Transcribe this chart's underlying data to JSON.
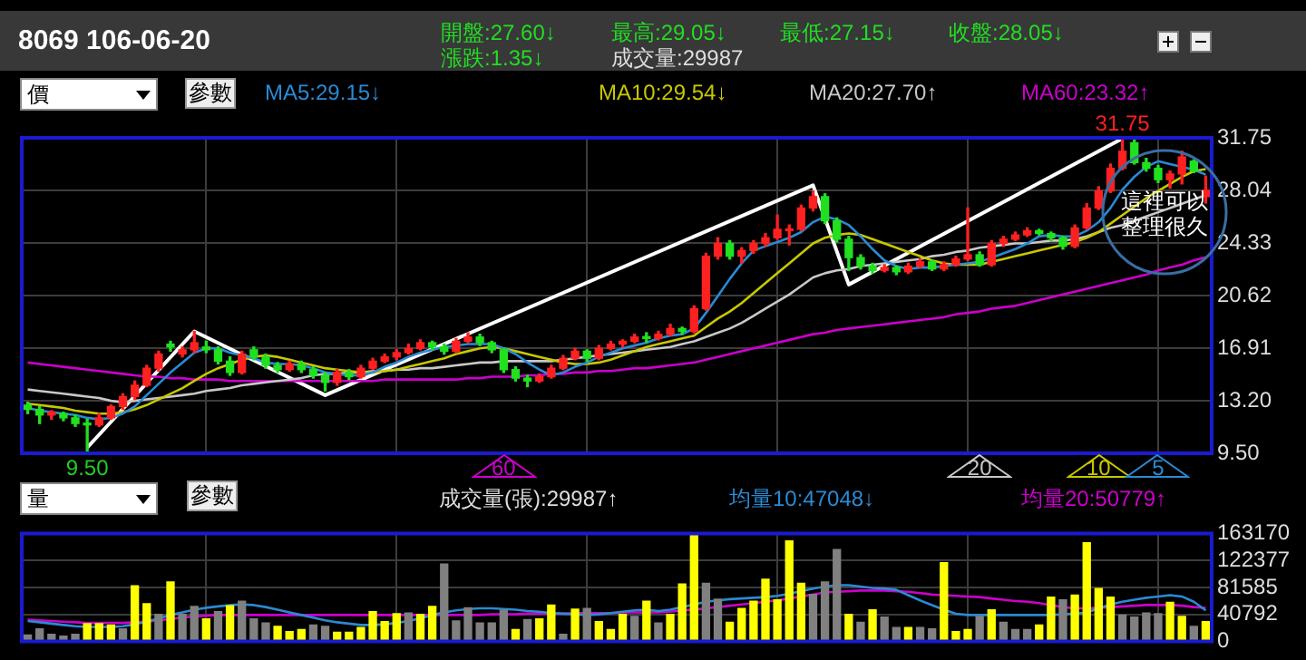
{
  "chart_data": [
    {
      "type": "candlestick",
      "title": "8069 106-06-20",
      "categories": [
        null,
        null,
        null,
        null,
        null,
        null,
        null,
        null,
        null,
        null,
        null,
        null,
        null,
        null,
        null,
        null,
        null,
        null,
        null,
        null,
        null,
        null,
        null,
        null,
        null,
        null,
        null,
        null,
        null,
        null,
        null,
        null,
        null,
        null,
        null,
        null,
        null,
        null,
        null,
        null,
        null,
        null,
        null,
        null,
        null,
        null,
        null,
        null,
        null,
        null,
        null,
        null,
        null,
        null,
        null,
        null,
        null,
        null,
        null,
        null,
        null,
        null,
        null,
        null,
        null,
        null,
        null,
        null,
        null,
        null,
        null,
        null,
        null,
        null,
        null,
        null,
        null,
        null,
        null,
        null,
        null,
        null,
        null,
        null,
        null,
        null,
        null,
        null,
        null,
        null,
        null,
        null,
        null,
        null,
        null,
        null,
        null,
        null,
        null,
        null
      ],
      "ohlc": [
        [
          12.9,
          13.1,
          12.3,
          12.6
        ],
        [
          12.6,
          12.8,
          11.6,
          12.2
        ],
        [
          12.2,
          12.5,
          11.9,
          12.4
        ],
        [
          12.3,
          12.4,
          11.8,
          12.0
        ],
        [
          12.0,
          12.2,
          11.4,
          11.6
        ],
        [
          11.6,
          11.9,
          9.5,
          11.5
        ],
        [
          11.5,
          12.3,
          11.4,
          12.0
        ],
        [
          12.0,
          12.9,
          11.9,
          12.8
        ],
        [
          12.8,
          13.7,
          12.6,
          13.5
        ],
        [
          13.5,
          14.6,
          13.3,
          14.3
        ],
        [
          14.3,
          15.7,
          14.2,
          15.5
        ],
        [
          15.5,
          16.7,
          15.3,
          16.5
        ],
        [
          17.2,
          17.4,
          16.7,
          17.0
        ],
        [
          16.5,
          17.0,
          16.3,
          16.8
        ],
        [
          16.8,
          18.1,
          16.6,
          17.3
        ],
        [
          17.0,
          17.4,
          16.6,
          16.8
        ],
        [
          16.8,
          17.0,
          15.8,
          16.0
        ],
        [
          16.0,
          16.3,
          15.0,
          15.2
        ],
        [
          15.2,
          16.7,
          15.1,
          16.5
        ],
        [
          16.8,
          17.0,
          16.1,
          16.3
        ],
        [
          16.3,
          16.5,
          15.5,
          15.7
        ],
        [
          15.7,
          15.9,
          15.2,
          15.4
        ],
        [
          15.4,
          16.0,
          15.3,
          15.8
        ],
        [
          15.8,
          16.0,
          15.2,
          15.4
        ],
        [
          15.4,
          15.6,
          14.8,
          15.0
        ],
        [
          15.0,
          15.2,
          13.9,
          14.5
        ],
        [
          14.5,
          15.4,
          14.3,
          15.2
        ],
        [
          15.2,
          15.4,
          14.7,
          14.9
        ],
        [
          14.9,
          15.7,
          14.8,
          15.5
        ],
        [
          15.5,
          16.2,
          15.4,
          16.0
        ],
        [
          16.0,
          16.5,
          15.9,
          16.3
        ],
        [
          16.3,
          16.8,
          16.1,
          16.6
        ],
        [
          16.6,
          17.2,
          16.5,
          16.9
        ],
        [
          16.9,
          17.5,
          16.8,
          17.3
        ],
        [
          17.3,
          17.4,
          16.8,
          17.0
        ],
        [
          17.0,
          17.2,
          16.5,
          16.7
        ],
        [
          16.7,
          17.6,
          16.6,
          17.4
        ],
        [
          17.4,
          18.0,
          17.3,
          17.7
        ],
        [
          17.7,
          17.9,
          17.1,
          17.3
        ],
        [
          17.3,
          17.4,
          16.6,
          16.8
        ],
        [
          16.8,
          16.9,
          15.2,
          15.4
        ],
        [
          15.4,
          15.6,
          14.6,
          14.8
        ],
        [
          14.8,
          15.0,
          14.2,
          14.6
        ],
        [
          14.6,
          15.1,
          14.5,
          14.9
        ],
        [
          14.9,
          15.7,
          14.8,
          15.5
        ],
        [
          15.5,
          16.4,
          15.4,
          16.2
        ],
        [
          16.2,
          16.9,
          16.1,
          16.7
        ],
        [
          16.7,
          16.8,
          16.0,
          16.2
        ],
        [
          16.2,
          17.1,
          16.1,
          16.9
        ],
        [
          16.9,
          17.4,
          16.8,
          17.2
        ],
        [
          17.2,
          17.5,
          17.0,
          17.4
        ],
        [
          17.4,
          17.9,
          17.3,
          17.7
        ],
        [
          17.7,
          18.0,
          17.3,
          17.6
        ],
        [
          17.6,
          18.1,
          17.5,
          17.9
        ],
        [
          17.9,
          18.6,
          17.8,
          18.3
        ],
        [
          18.3,
          18.4,
          17.9,
          18.1
        ],
        [
          18.1,
          19.9,
          18.0,
          19.7
        ],
        [
          19.7,
          23.6,
          19.6,
          23.4
        ],
        [
          23.4,
          24.7,
          23.2,
          24.3
        ],
        [
          24.3,
          24.5,
          23.2,
          23.4
        ],
        [
          23.4,
          24.0,
          22.9,
          23.8
        ],
        [
          23.8,
          24.5,
          23.6,
          24.3
        ],
        [
          24.3,
          25.0,
          24.1,
          24.7
        ],
        [
          24.7,
          26.3,
          24.6,
          25.3
        ],
        [
          25.2,
          25.6,
          24.2,
          25.3
        ],
        [
          25.3,
          27.0,
          25.2,
          26.8
        ],
        [
          26.8,
          28.0,
          26.6,
          27.6
        ],
        [
          27.6,
          27.8,
          25.7,
          25.9
        ],
        [
          25.9,
          26.1,
          24.4,
          24.6
        ],
        [
          24.6,
          24.8,
          22.4,
          23.3
        ],
        [
          23.3,
          23.5,
          22.5,
          22.7
        ],
        [
          22.7,
          22.9,
          22.2,
          22.4
        ],
        [
          22.4,
          22.8,
          22.3,
          22.6
        ],
        [
          22.6,
          22.7,
          22.1,
          22.3
        ],
        [
          22.3,
          22.9,
          22.2,
          22.7
        ],
        [
          22.7,
          23.2,
          22.6,
          23.0
        ],
        [
          23.0,
          23.1,
          22.4,
          22.5
        ],
        [
          22.5,
          23.0,
          22.4,
          22.8
        ],
        [
          22.8,
          23.4,
          22.7,
          23.2
        ],
        [
          23.2,
          26.8,
          23.1,
          23.5
        ],
        [
          23.5,
          23.7,
          22.7,
          22.8
        ],
        [
          22.8,
          24.5,
          22.7,
          24.3
        ],
        [
          24.3,
          24.8,
          24.1,
          24.6
        ],
        [
          24.6,
          25.1,
          24.5,
          24.9
        ],
        [
          24.9,
          25.4,
          24.8,
          25.2
        ],
        [
          25.2,
          25.3,
          24.9,
          25.0
        ],
        [
          25.0,
          25.1,
          24.5,
          24.7
        ],
        [
          24.7,
          24.8,
          23.9,
          24.1
        ],
        [
          24.1,
          25.6,
          24.0,
          25.4
        ],
        [
          25.4,
          27.1,
          25.3,
          26.8
        ],
        [
          26.8,
          28.3,
          26.7,
          28.0
        ],
        [
          28.0,
          29.9,
          27.9,
          29.6
        ],
        [
          29.6,
          31.75,
          29.5,
          30.8
        ],
        [
          31.4,
          31.6,
          29.9,
          30.0
        ],
        [
          30.0,
          30.3,
          29.4,
          29.6
        ],
        [
          29.6,
          29.8,
          28.6,
          28.8
        ],
        [
          28.8,
          29.4,
          28.2,
          29.2
        ],
        [
          29.2,
          30.8,
          28.5,
          30.4
        ],
        [
          30.1,
          30.2,
          29.3,
          29.4
        ],
        [
          27.6,
          29.05,
          27.15,
          28.05
        ]
      ],
      "colors": [
        "#20e020",
        "#20e020",
        "#ff2020",
        "#20e020",
        "#20e020",
        "#20e020",
        "#ff2020",
        "#ff2020",
        "#ff2020",
        "#ff2020",
        "#ff2020",
        "#ff2020",
        "#20e020",
        "#ff2020",
        "#ff2020",
        "#20e020",
        "#20e020",
        "#20e020",
        "#ff2020",
        "#20e020",
        "#20e020",
        "#20e020",
        "#ff2020",
        "#20e020",
        "#20e020",
        "#20e020",
        "#ff2020",
        "#20e020",
        "#ff2020",
        "#ff2020",
        "#ff2020",
        "#ff2020",
        "#ff2020",
        "#ff2020",
        "#20e020",
        "#20e020",
        "#ff2020",
        "#ff2020",
        "#20e020",
        "#20e020",
        "#20e020",
        "#20e020",
        "#20e020",
        "#ff2020",
        "#ff2020",
        "#ff2020",
        "#ff2020",
        "#20e020",
        "#ff2020",
        "#ff2020",
        "#ff2020",
        "#ff2020",
        "#20e020",
        "#ff2020",
        "#ff2020",
        "#20e020",
        "#ff2020",
        "#ff2020",
        "#ff2020",
        "#20e020",
        "#ff2020",
        "#ff2020",
        "#ff2020",
        "#ff2020",
        "#ff2020",
        "#ff2020",
        "#ff2020",
        "#20e020",
        "#20e020",
        "#20e020",
        "#20e020",
        "#20e020",
        "#ff2020",
        "#20e020",
        "#ff2020",
        "#ff2020",
        "#20e020",
        "#ff2020",
        "#ff2020",
        "#ff2020",
        "#20e020",
        "#ff2020",
        "#ff2020",
        "#ff2020",
        "#ff2020",
        "#20e020",
        "#20e020",
        "#20e020",
        "#ff2020",
        "#ff2020",
        "#ff2020",
        "#ff2020",
        "#ff2020",
        "#20e020",
        "#20e020",
        "#20e020",
        "#ff2020",
        "#ff2020",
        "#20e020",
        "#ff2020"
      ],
      "series": [
        {
          "type": "line",
          "name": "MA5:29.15↓",
          "color": "#2a8ad4",
          "values": [
            12.7,
            12.5,
            12.4,
            12.3,
            12.2,
            12.0,
            11.9,
            12.0,
            12.3,
            12.8,
            13.6,
            14.4,
            15.2,
            15.9,
            16.6,
            16.9,
            16.9,
            16.6,
            16.4,
            16.2,
            15.9,
            15.8,
            15.8,
            15.7,
            15.5,
            15.2,
            15.1,
            15.0,
            15.0,
            15.2,
            15.6,
            15.9,
            16.3,
            16.6,
            16.8,
            17.0,
            17.1,
            17.2,
            17.2,
            17.2,
            16.9,
            16.5,
            15.9,
            15.4,
            15.0,
            15.2,
            15.6,
            15.9,
            16.3,
            16.6,
            16.9,
            17.1,
            17.3,
            17.6,
            17.8,
            17.9,
            18.3,
            19.4,
            20.6,
            21.8,
            22.9,
            23.8,
            24.1,
            24.4,
            24.7,
            25.1,
            25.8,
            26.2,
            26.0,
            25.6,
            24.8,
            23.9,
            23.1,
            22.7,
            22.5,
            22.6,
            22.6,
            22.7,
            22.8,
            22.9,
            23.0,
            23.3,
            23.6,
            23.9,
            24.3,
            24.8,
            24.9,
            24.8,
            24.8,
            25.2,
            25.8,
            26.8,
            28.1,
            29.0,
            29.7,
            30.1,
            29.9,
            29.7,
            29.5,
            29.15
          ]
        },
        {
          "type": "line",
          "name": "MA10:29.54↓",
          "color": "#c8c800",
          "values": [
            13.0,
            12.9,
            12.8,
            12.7,
            12.5,
            12.4,
            12.3,
            12.3,
            12.4,
            12.6,
            12.9,
            13.3,
            13.7,
            14.1,
            14.6,
            15.1,
            15.5,
            15.8,
            16.1,
            16.3,
            16.4,
            16.3,
            16.1,
            15.9,
            15.7,
            15.5,
            15.4,
            15.3,
            15.2,
            15.2,
            15.3,
            15.4,
            15.6,
            15.8,
            16.0,
            16.2,
            16.5,
            16.7,
            16.9,
            17.0,
            16.9,
            16.7,
            16.5,
            16.3,
            16.1,
            15.9,
            15.8,
            15.8,
            15.9,
            16.1,
            16.4,
            16.7,
            17.0,
            17.2,
            17.4,
            17.6,
            17.8,
            18.4,
            19.0,
            19.5,
            20.1,
            20.8,
            21.5,
            22.2,
            22.9,
            23.6,
            24.3,
            24.7,
            24.9,
            25.0,
            24.9,
            24.6,
            24.3,
            24.0,
            23.7,
            23.4,
            23.1,
            22.9,
            22.8,
            22.8,
            22.8,
            23.0,
            23.2,
            23.4,
            23.6,
            23.8,
            24.0,
            24.2,
            24.4,
            24.7,
            25.1,
            25.7,
            26.3,
            26.9,
            27.5,
            28.0,
            28.5,
            29.0,
            29.4,
            29.54
          ]
        },
        {
          "type": "line",
          "name": "MA20:27.70↑",
          "color": "#c8c8c8",
          "values": [
            14.0,
            13.9,
            13.8,
            13.7,
            13.6,
            13.5,
            13.4,
            13.2,
            13.1,
            13.2,
            13.3,
            13.4,
            13.5,
            13.6,
            13.7,
            13.9,
            14.0,
            14.1,
            14.3,
            14.4,
            14.5,
            14.6,
            14.7,
            14.8,
            15.0,
            15.1,
            15.1,
            15.2,
            15.2,
            15.3,
            15.3,
            15.4,
            15.4,
            15.5,
            15.5,
            15.6,
            15.7,
            15.8,
            15.9,
            15.9,
            16.0,
            16.0,
            16.0,
            16.0,
            16.0,
            16.1,
            16.2,
            16.3,
            16.4,
            16.5,
            16.6,
            16.7,
            16.8,
            16.9,
            17.0,
            17.2,
            17.4,
            17.7,
            18.0,
            18.3,
            18.7,
            19.2,
            19.7,
            20.2,
            20.7,
            21.3,
            21.9,
            22.2,
            22.4,
            22.5,
            22.7,
            22.8,
            22.9,
            23.0,
            23.1,
            23.2,
            23.4,
            23.5,
            23.7,
            23.8,
            24.0,
            24.1,
            24.2,
            24.3,
            24.3,
            24.4,
            24.5,
            24.5,
            24.6,
            24.8,
            25.1,
            25.4,
            25.6,
            25.9,
            26.2,
            26.5,
            26.8,
            27.1,
            27.4,
            27.7
          ]
        },
        {
          "type": "line",
          "name": "MA60:23.32↑",
          "color": "#cc00cc",
          "values": [
            15.9,
            15.8,
            15.7,
            15.6,
            15.5,
            15.4,
            15.3,
            15.2,
            15.1,
            15.0,
            14.9,
            14.9,
            14.8,
            14.8,
            14.7,
            14.7,
            14.7,
            14.6,
            14.6,
            14.6,
            14.6,
            14.6,
            14.6,
            14.6,
            14.6,
            14.6,
            14.6,
            14.6,
            14.6,
            14.6,
            14.7,
            14.7,
            14.7,
            14.7,
            14.7,
            14.7,
            14.7,
            14.8,
            14.8,
            14.9,
            14.9,
            14.9,
            15.0,
            15.0,
            15.1,
            15.1,
            15.2,
            15.2,
            15.3,
            15.3,
            15.4,
            15.5,
            15.5,
            15.6,
            15.7,
            15.8,
            15.9,
            16.1,
            16.3,
            16.5,
            16.7,
            16.9,
            17.1,
            17.3,
            17.5,
            17.7,
            17.9,
            18.0,
            18.2,
            18.3,
            18.4,
            18.5,
            18.6,
            18.7,
            18.8,
            18.9,
            19.0,
            19.1,
            19.3,
            19.4,
            19.5,
            19.7,
            19.8,
            19.9,
            20.1,
            20.3,
            20.5,
            20.7,
            20.9,
            21.1,
            21.3,
            21.5,
            21.7,
            21.9,
            22.1,
            22.4,
            22.6,
            22.8,
            23.1,
            23.32
          ]
        },
        {
          "type": "line",
          "color": "#ffffff",
          "values": [
            null,
            null,
            null,
            null,
            null,
            9.9,
            null,
            null,
            null,
            null,
            null,
            null,
            null,
            null,
            18.1,
            null,
            null,
            null,
            null,
            null,
            null,
            null,
            null,
            null,
            null,
            13.6,
            null,
            null,
            null,
            null,
            null,
            null,
            null,
            null,
            null,
            null,
            null,
            null,
            null,
            null,
            null,
            null,
            null,
            null,
            null,
            null,
            null,
            null,
            null,
            null,
            null,
            null,
            null,
            null,
            null,
            null,
            null,
            null,
            null,
            null,
            null,
            null,
            null,
            null,
            null,
            null,
            28.4,
            null,
            null,
            21.4,
            null,
            null,
            null,
            null,
            null,
            null,
            null,
            null,
            null,
            null,
            null,
            null,
            null,
            null,
            null,
            null,
            null,
            null,
            null,
            null,
            null,
            null,
            31.7,
            null,
            null,
            null,
            null,
            null,
            null,
            null
          ]
        }
      ],
      "annotations": [
        {
          "text": "31.75",
          "y": 31.75
        },
        {
          "text": "9.50",
          "y": 9.5
        },
        "這裡可以整理很久",
        "60",
        "20",
        "10",
        "5",
        "開盤:27.60↓",
        "最高:29.05↓",
        "最低:27.15↓",
        "收盤:28.05↓",
        "漲跌:1.35↓",
        "成交量:29987",
        "價",
        "參數"
      ],
      "ylim": [
        9.5,
        31.75
      ],
      "yticks": [
        {
          "value": 9.5,
          "label": "9.50"
        },
        {
          "value": 13.2,
          "label": "13.20"
        },
        16.91,
        20.62,
        24.33,
        28.04,
        31.75
      ],
      "grid": true,
      "legend": "top",
      "tick_labels": "y"
    },
    {
      "type": "bar",
      "categories": [
        null,
        null,
        null,
        null,
        null,
        null,
        null,
        null,
        null,
        null,
        null,
        null,
        null,
        null,
        null,
        null,
        null,
        null,
        null,
        null,
        null,
        null,
        null,
        null,
        null,
        null,
        null,
        null,
        null,
        null,
        null,
        null,
        null,
        null,
        null,
        null,
        null,
        null,
        null,
        null,
        null,
        null,
        null,
        null,
        null,
        null,
        null,
        null,
        null,
        null,
        null,
        null,
        null,
        null,
        null,
        null,
        null,
        null,
        null,
        null,
        null,
        null,
        null,
        null,
        null,
        null,
        null,
        null,
        null,
        null,
        null,
        null,
        null,
        null,
        null,
        null,
        null,
        null,
        null,
        null,
        null,
        null,
        null,
        null,
        null,
        null,
        null,
        null,
        null,
        null,
        null,
        null,
        null,
        null,
        null,
        null,
        null,
        null,
        null,
        null
      ],
      "series": [
        {
          "name": "成交量(張):29987↑",
          "colors": [
            "#808080",
            "#808080",
            "#808080",
            "#808080",
            "#808080",
            "#ffff00",
            "#ffff00",
            "#ffff00",
            "#808080",
            "#ffff00",
            "#ffff00",
            "#808080",
            "#ffff00",
            "#808080",
            "#808080",
            "#ffff00",
            "#808080",
            "#ffff00",
            "#808080",
            "#808080",
            "#808080",
            "#ffff00",
            "#ffff00",
            "#ffff00",
            "#808080",
            "#808080",
            "#ffff00",
            "#ffff00",
            "#ffff00",
            "#ffff00",
            "#ffff00",
            "#ffff00",
            "#808080",
            "#ffff00",
            "#ffff00",
            "#808080",
            "#808080",
            "#808080",
            "#808080",
            "#808080",
            "#808080",
            "#ffff00",
            "#808080",
            "#ffff00",
            "#ffff00",
            "#808080",
            "#ffff00",
            "#808080",
            "#ffff00",
            "#ffff00",
            "#ffff00",
            "#808080",
            "#ffff00",
            "#808080",
            "#ffff00",
            "#ffff00",
            "#ffff00",
            "#808080",
            "#808080",
            "#ffff00",
            "#ffff00",
            "#ffff00",
            "#ffff00",
            "#ffff00",
            "#ffff00",
            "#ffff00",
            "#808080",
            "#808080",
            "#808080",
            "#ffff00",
            "#808080",
            "#ffff00",
            "#808080",
            "#808080",
            "#ffff00",
            "#808080",
            "#808080",
            "#ffff00",
            "#ffff00",
            "#ffff00",
            "#808080",
            "#ffff00",
            "#808080",
            "#808080",
            "#808080",
            "#ffff00",
            "#ffff00",
            "#808080",
            "#ffff00",
            "#ffff00",
            "#ffff00",
            "#ffff00",
            "#808080",
            "#808080",
            "#808080",
            "#808080",
            "#ffff00",
            "#ffff00",
            "#808080",
            "#ffff00"
          ],
          "values": [
            10000,
            19000,
            11000,
            8000,
            11000,
            27000,
            27000,
            25000,
            19000,
            84000,
            57000,
            41000,
            90000,
            41000,
            53000,
            34000,
            45000,
            54000,
            61000,
            34000,
            28000,
            23000,
            15000,
            18000,
            25000,
            23000,
            14000,
            14000,
            21000,
            45000,
            30000,
            42000,
            43000,
            41000,
            53000,
            117000,
            31000,
            51000,
            28000,
            28000,
            47000,
            18000,
            33000,
            34000,
            55000,
            11000,
            49000,
            50000,
            30000,
            18000,
            41000,
            38000,
            61000,
            28000,
            41000,
            87000,
            163000,
            88000,
            64000,
            29000,
            50000,
            61000,
            94000,
            63000,
            152000,
            88000,
            71000,
            90000,
            139000,
            41000,
            29000,
            48000,
            37000,
            21000,
            21000,
            21000,
            19000,
            119000,
            15000,
            18000,
            38000,
            48000,
            29000,
            18000,
            18000,
            25000,
            67000,
            63000,
            70000,
            149000,
            80000,
            67000,
            40000,
            37000,
            43000,
            42000,
            59000,
            38000,
            23000,
            29987
          ]
        },
        {
          "type": "line",
          "name": "均量10:47048↓",
          "color": "#2a8ad4",
          "values": [
            31000,
            29000,
            27000,
            25000,
            23000,
            22000,
            22000,
            22000,
            23000,
            26000,
            30000,
            35000,
            40000,
            44000,
            48000,
            51000,
            53000,
            55000,
            56000,
            55000,
            52000,
            48000,
            44000,
            40000,
            36000,
            32000,
            29000,
            27000,
            25000,
            25000,
            26000,
            28000,
            31000,
            35000,
            40000,
            44000,
            47000,
            49000,
            50000,
            50000,
            49000,
            48000,
            46000,
            45000,
            43000,
            42000,
            41000,
            40000,
            41000,
            43000,
            45000,
            47000,
            48000,
            46000,
            48000,
            52000,
            56000,
            60000,
            62000,
            64000,
            65000,
            66000,
            67000,
            69000,
            72000,
            76000,
            80000,
            83000,
            85000,
            85000,
            83000,
            81000,
            80000,
            78000,
            70000,
            62000,
            55000,
            48000,
            42000,
            40000,
            40000,
            40000,
            40000,
            40000,
            40000,
            40000,
            40000,
            41000,
            42000,
            44000,
            50000,
            56000,
            60000,
            63000,
            66000,
            68000,
            70000,
            68000,
            60000,
            47048
          ]
        },
        {
          "type": "line",
          "name": "均量20:50779↑",
          "color": "#cc00cc",
          "values": [
            33000,
            32000,
            31000,
            30000,
            29000,
            28000,
            28000,
            28000,
            28000,
            29000,
            30000,
            32000,
            34000,
            36000,
            38000,
            39000,
            40000,
            40000,
            40000,
            40000,
            40000,
            40000,
            40000,
            40000,
            40000,
            40000,
            40000,
            40000,
            40000,
            40000,
            40000,
            40000,
            40000,
            40000,
            40000,
            40000,
            40000,
            40000,
            40000,
            41000,
            41000,
            41000,
            42000,
            42000,
            42000,
            42000,
            43000,
            43000,
            43000,
            43000,
            44000,
            44000,
            44000,
            44000,
            45000,
            47000,
            48000,
            50000,
            52000,
            54000,
            56000,
            58000,
            60000,
            62000,
            65000,
            68000,
            71000,
            74000,
            75000,
            76000,
            77000,
            77000,
            77000,
            76000,
            75000,
            73000,
            71000,
            70000,
            69000,
            68000,
            67000,
            65000,
            63000,
            61000,
            60000,
            58000,
            55000,
            52000,
            50000,
            50000,
            51000,
            52000,
            53000,
            54000,
            55000,
            55000,
            55000,
            54000,
            52000,
            50779
          ]
        }
      ],
      "annotations": [
        "量",
        "參數"
      ],
      "ylim": [
        0,
        163170
      ],
      "yticks": [
        0,
        40792,
        81585,
        122377,
        163170
      ],
      "grid": true,
      "legend": "top",
      "tick_labels": "y"
    }
  ]
}
